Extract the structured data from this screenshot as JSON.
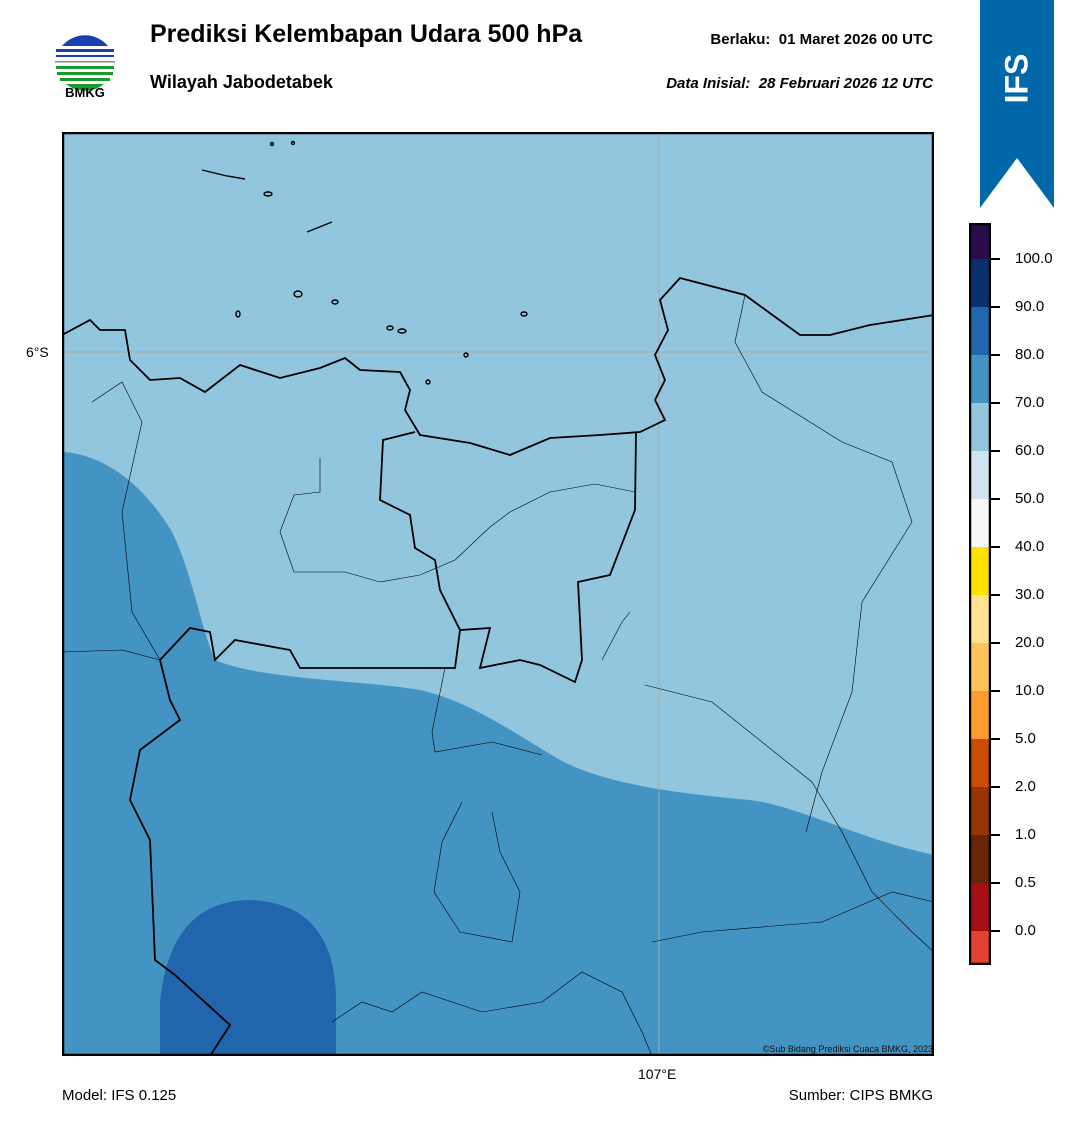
{
  "header": {
    "title": "Prediksi Kelembapan Udara 500 hPa",
    "subtitle": "Wilayah Jabodetabek",
    "valid": "Berlaku:  01 Maret 2026 00 UTC",
    "initial": "Data Inisial:  28 Februari 2026 12 UTC",
    "logo_text": "BMKG",
    "badge": "IFS",
    "badge_color": "#0068a8"
  },
  "map": {
    "lat_label": "6°S",
    "lon_label": "107°E",
    "copyright": "©Sub Bidang Prediksi Cuaca BMKG, 2023",
    "field_colors": {
      "60-70": "#92c5de",
      "70-80": "#4393c3",
      "80-90": "#2166ac"
    }
  },
  "colorbar": {
    "ticks": [
      "100.0",
      "90.0",
      "80.0",
      "70.0",
      "60.0",
      "50.0",
      "40.0",
      "30.0",
      "20.0",
      "10.0",
      "5.0",
      "2.0",
      "1.0",
      "0.5",
      "0.0"
    ],
    "colors": [
      "#2a0b4c",
      "#08306b",
      "#2166ac",
      "#4393c3",
      "#92c5de",
      "#d1e5f0",
      "#f7f7f7",
      "#ffe000",
      "#ffe291",
      "#ffc457",
      "#ff9a2e",
      "#cc4c02",
      "#993404",
      "#662506",
      "#a50f15",
      "#e34232"
    ]
  },
  "footer": {
    "model": "Model: IFS 0.125",
    "source": "Sumber: CIPS BMKG"
  }
}
